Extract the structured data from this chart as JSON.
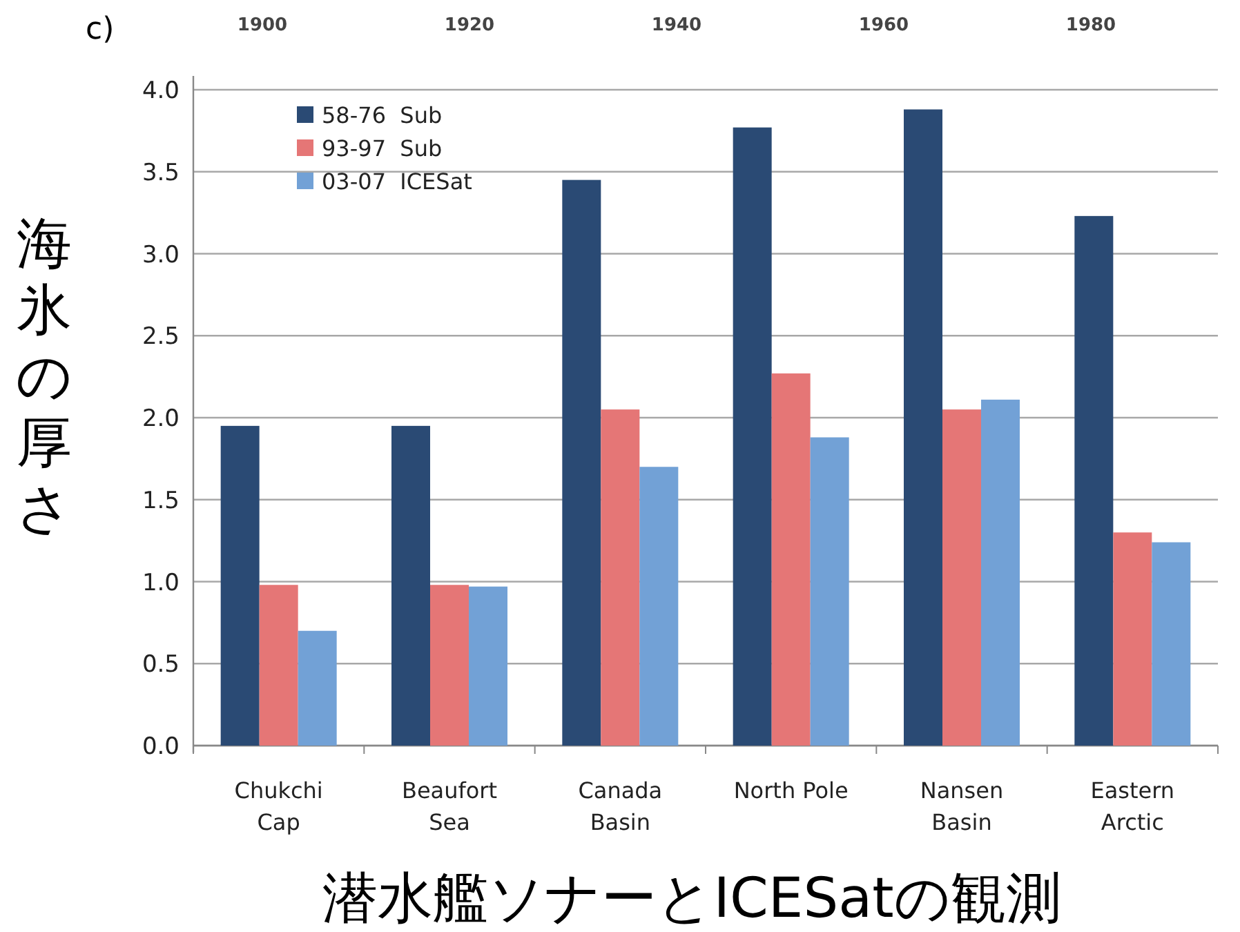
{
  "chart_data": {
    "type": "bar",
    "categories": [
      "Chukchi\nCap",
      "Beaufort\nSea",
      "Canada\nBasin",
      "North Pole",
      "Nansen\nBasin",
      "Eastern\nArctic"
    ],
    "series": [
      {
        "name": "58-76  Sub",
        "color": "#2a4a74",
        "values": [
          1.95,
          1.95,
          3.45,
          3.77,
          3.88,
          3.23
        ]
      },
      {
        "name": "93-97  Sub",
        "color": "#e57676",
        "values": [
          0.98,
          0.98,
          2.05,
          2.27,
          2.05,
          1.3
        ]
      },
      {
        "name": "03-07  ICESat",
        "color": "#72a1d6",
        "values": [
          0.7,
          0.97,
          1.7,
          1.88,
          2.11,
          1.24
        ]
      }
    ],
    "ylim": [
      0,
      4
    ],
    "yticks": [
      {
        "value": 0,
        "label": "0.0"
      },
      {
        "value": 0.5,
        "label": "0.5"
      },
      {
        "value": 1,
        "label": "1.0"
      },
      {
        "value": 1.5,
        "label": "1.5"
      },
      {
        "value": 2,
        "label": "2.0"
      },
      {
        "value": 2.5,
        "label": "2.5"
      },
      {
        "value": 3,
        "label": "3.0"
      },
      {
        "value": 3.5,
        "label": "3.5"
      },
      {
        "value": 4,
        "label": "4.0"
      }
    ],
    "ylabel": "海氷の厚さ",
    "xlabel": "潜水艦ソナーとICESatの観測",
    "annotations": [
      "c)",
      "1900",
      "1920",
      "1940",
      "1960",
      "1980"
    ],
    "grid": "y",
    "legend": "top left"
  }
}
